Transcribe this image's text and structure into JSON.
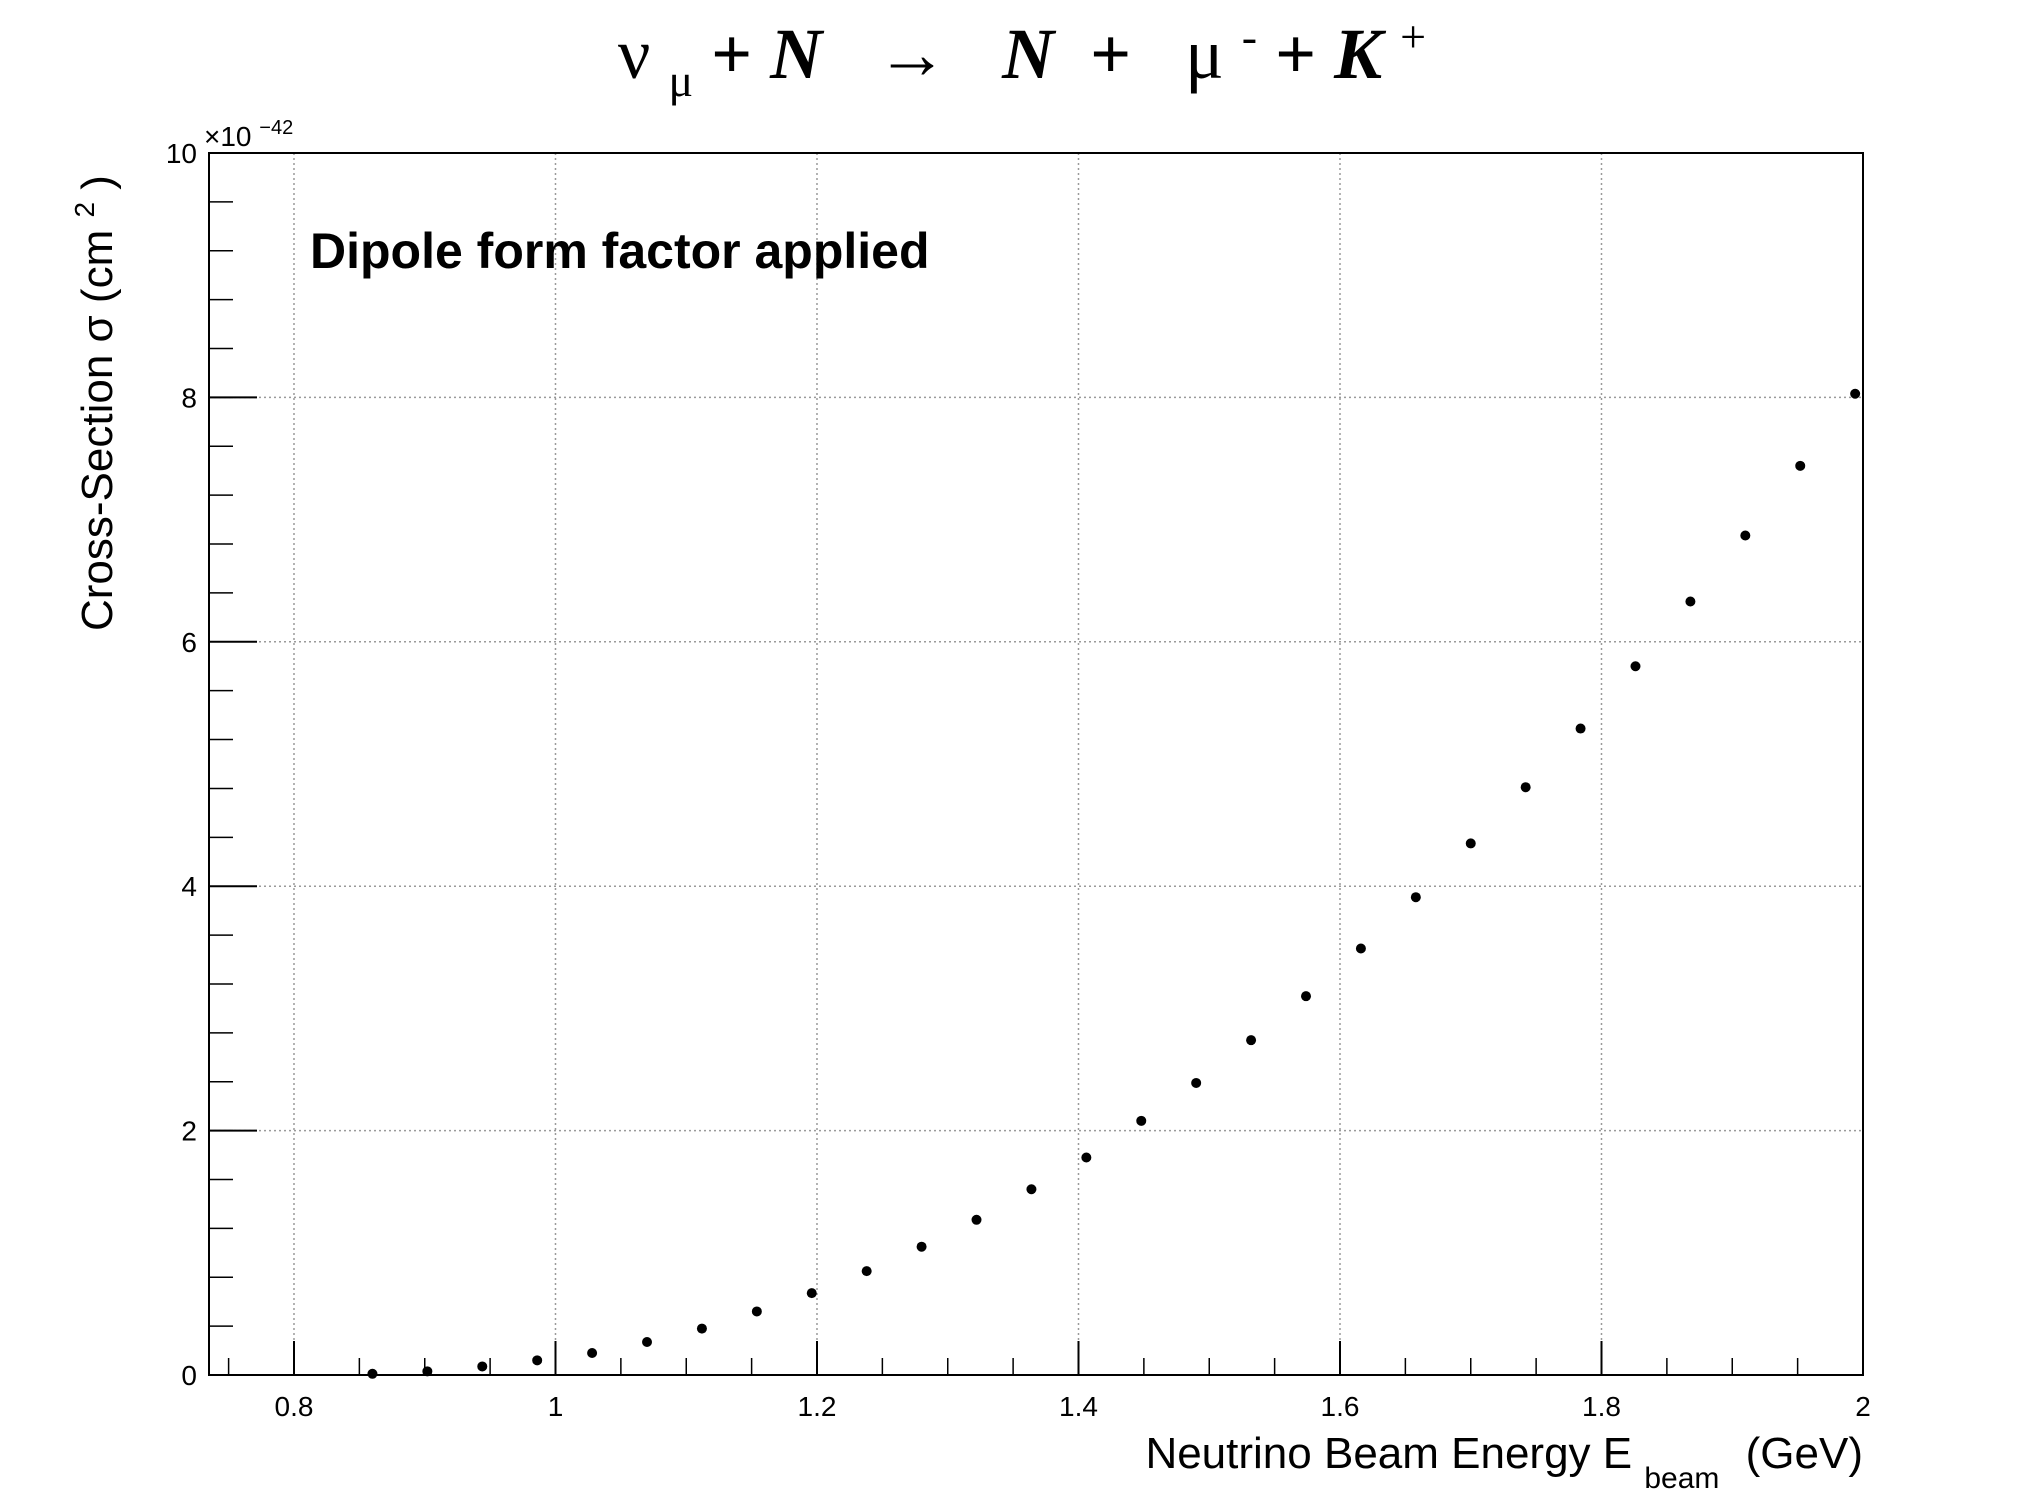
{
  "chart_data": {
    "type": "scatter",
    "title": {
      "nu": "ν",
      "mu_sub": "μ",
      "plus1": " + ",
      "N1": "N",
      "arrow": "  →  ",
      "N2": "N",
      "plus2": " +  ",
      "mu": "μ",
      "minus_sup": "-",
      "plus3": " + ",
      "K": "K",
      "plus_sup": "+"
    },
    "annotation": "Dipole form factor applied",
    "xlabel": {
      "main": "Neutrino Beam Energy E",
      "sub": "beam",
      "unit": "(GeV)"
    },
    "ylabel": {
      "main": "Cross-Section σ (cm",
      "sup": "2",
      "close": ")"
    },
    "y_multiplier": {
      "base": "×10",
      "exp": "−42"
    },
    "xlim": [
      0.735,
      2.0
    ],
    "ylim": [
      0,
      10
    ],
    "grid": true,
    "x_ticks": [
      0.8,
      1.0,
      1.2,
      1.4,
      1.6,
      1.8,
      2.0
    ],
    "x_tick_labels": [
      "0.8",
      "1",
      "1.2",
      "1.4",
      "1.6",
      "1.8",
      "2"
    ],
    "y_ticks": [
      0,
      2,
      4,
      6,
      8,
      10
    ],
    "y_tick_labels": [
      "0",
      "2",
      "4",
      "6",
      "8",
      "10"
    ],
    "series": [
      {
        "marker_color": "#000000",
        "x": [
          0.86,
          0.902,
          0.944,
          0.986,
          1.028,
          1.07,
          1.112,
          1.154,
          1.196,
          1.238,
          1.28,
          1.322,
          1.364,
          1.406,
          1.448,
          1.49,
          1.532,
          1.574,
          1.616,
          1.658,
          1.7,
          1.742,
          1.784,
          1.826,
          1.868,
          1.91,
          1.952,
          1.994
        ],
        "y": [
          0.01,
          0.03,
          0.07,
          0.12,
          0.18,
          0.27,
          0.38,
          0.52,
          0.67,
          0.85,
          1.05,
          1.27,
          1.52,
          1.78,
          2.08,
          2.39,
          2.74,
          3.1,
          3.49,
          3.91,
          4.35,
          4.81,
          5.29,
          5.8,
          6.33,
          6.87,
          7.44,
          8.03
        ]
      }
    ]
  }
}
